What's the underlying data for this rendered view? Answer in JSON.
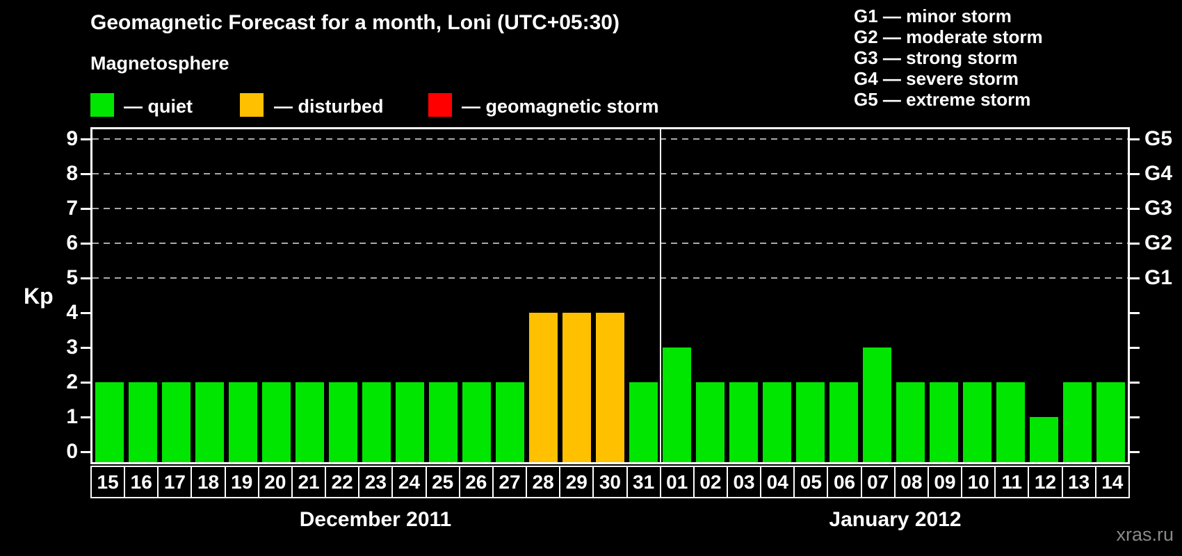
{
  "title": "Geomagnetic Forecast for a month, Loni (UTC+05:30)",
  "subtitle": "Magnetosphere",
  "legend": {
    "items": [
      {
        "key": "quiet",
        "label": "— quiet",
        "color": "#00e600"
      },
      {
        "key": "disturbed",
        "label": "— disturbed",
        "color": "#ffc000"
      },
      {
        "key": "storm",
        "label": "— geomagnetic storm",
        "color": "#ff0000"
      }
    ]
  },
  "storm_scale_legend": [
    "G1 — minor storm",
    "G2 — moderate storm",
    "G3 — strong storm",
    "G4 — severe storm",
    "G5 — extreme storm"
  ],
  "watermark": "xras.ru",
  "chart_data": {
    "type": "bar",
    "ylabel": "Kp",
    "ylim": [
      0,
      9
    ],
    "y_ticks": [
      0,
      1,
      2,
      3,
      4,
      5,
      6,
      7,
      8,
      9
    ],
    "gridlines_at": [
      5,
      6,
      7,
      8,
      9
    ],
    "grid": "dashed",
    "right_axis_labels": [
      {
        "label": "G1",
        "value": 5
      },
      {
        "label": "G2",
        "value": 6
      },
      {
        "label": "G3",
        "value": 7
      },
      {
        "label": "G4",
        "value": 8
      },
      {
        "label": "G5",
        "value": 9
      }
    ],
    "colors": {
      "quiet": "#00e600",
      "disturbed": "#ffc000",
      "storm": "#ff0000"
    },
    "groups": [
      {
        "label": "December 2011",
        "days": [
          {
            "day": "15",
            "kp": 2,
            "status": "quiet"
          },
          {
            "day": "16",
            "kp": 2,
            "status": "quiet"
          },
          {
            "day": "17",
            "kp": 2,
            "status": "quiet"
          },
          {
            "day": "18",
            "kp": 2,
            "status": "quiet"
          },
          {
            "day": "19",
            "kp": 2,
            "status": "quiet"
          },
          {
            "day": "20",
            "kp": 2,
            "status": "quiet"
          },
          {
            "day": "21",
            "kp": 2,
            "status": "quiet"
          },
          {
            "day": "22",
            "kp": 2,
            "status": "quiet"
          },
          {
            "day": "23",
            "kp": 2,
            "status": "quiet"
          },
          {
            "day": "24",
            "kp": 2,
            "status": "quiet"
          },
          {
            "day": "25",
            "kp": 2,
            "status": "quiet"
          },
          {
            "day": "26",
            "kp": 2,
            "status": "quiet"
          },
          {
            "day": "27",
            "kp": 2,
            "status": "quiet"
          },
          {
            "day": "28",
            "kp": 4,
            "status": "disturbed"
          },
          {
            "day": "29",
            "kp": 4,
            "status": "disturbed"
          },
          {
            "day": "30",
            "kp": 4,
            "status": "disturbed"
          },
          {
            "day": "31",
            "kp": 2,
            "status": "quiet"
          }
        ]
      },
      {
        "label": "January 2012",
        "days": [
          {
            "day": "01",
            "kp": 3,
            "status": "quiet"
          },
          {
            "day": "02",
            "kp": 2,
            "status": "quiet"
          },
          {
            "day": "03",
            "kp": 2,
            "status": "quiet"
          },
          {
            "day": "04",
            "kp": 2,
            "status": "quiet"
          },
          {
            "day": "05",
            "kp": 2,
            "status": "quiet"
          },
          {
            "day": "06",
            "kp": 2,
            "status": "quiet"
          },
          {
            "day": "07",
            "kp": 3,
            "status": "quiet"
          },
          {
            "day": "08",
            "kp": 2,
            "status": "quiet"
          },
          {
            "day": "09",
            "kp": 2,
            "status": "quiet"
          },
          {
            "day": "10",
            "kp": 2,
            "status": "quiet"
          },
          {
            "day": "11",
            "kp": 2,
            "status": "quiet"
          },
          {
            "day": "12",
            "kp": 1,
            "status": "quiet"
          },
          {
            "day": "13",
            "kp": 2,
            "status": "quiet"
          },
          {
            "day": "14",
            "kp": 2,
            "status": "quiet"
          }
        ]
      }
    ]
  }
}
